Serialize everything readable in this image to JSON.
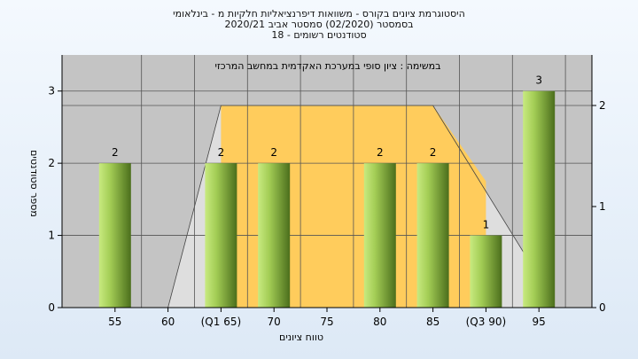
{
  "chart_data": {
    "type": "bar",
    "title": "היסטוגרמת ציונים בקורס - משוואות דיפרנציאליות חלקיות מ - בינלאומי",
    "subtitle_1": "בסמסטר  (02/2020)  סמסטר אביב 2020/21",
    "subtitle_2": "סטודנטים רשומים - 18",
    "annotation": "במשימה : ציון סופי במערכת האקדמית במחשב המרכזי",
    "xlabel": "טווח ציונים",
    "ylabel": "מספר סטודנטים",
    "categories": [
      "55",
      "60",
      "(Q1 65)",
      "70",
      "75",
      "80",
      "85",
      "(Q3 90)",
      "95"
    ],
    "values": [
      2,
      0,
      2,
      2,
      0,
      2,
      2,
      1,
      3
    ],
    "data_labels": [
      "2",
      "",
      "2",
      "2",
      "",
      "2",
      "2",
      "1",
      "3"
    ],
    "ylim": [
      0,
      3.5
    ],
    "yticks": [
      "0",
      "1",
      "2",
      "3"
    ],
    "y2ticks": [
      "0",
      "1",
      "2"
    ],
    "y2lim": [
      0,
      2.5
    ],
    "distribution_curve": {
      "x_index": [
        0,
        1.0,
        2.0,
        6.0,
        8.0
      ],
      "y_secondary": [
        0,
        0,
        2,
        2,
        0.3
      ]
    },
    "iqr_band": {
      "from_index": 2,
      "to_index": 7,
      "height_secondary": 2
    },
    "grid": true,
    "colors": {
      "plot_bg": "#c4c4c4",
      "band": "#ffcc5c",
      "curve_fill": "#dedede",
      "bar_light": "#c3e57a",
      "bar_dark": "#50741e"
    }
  }
}
